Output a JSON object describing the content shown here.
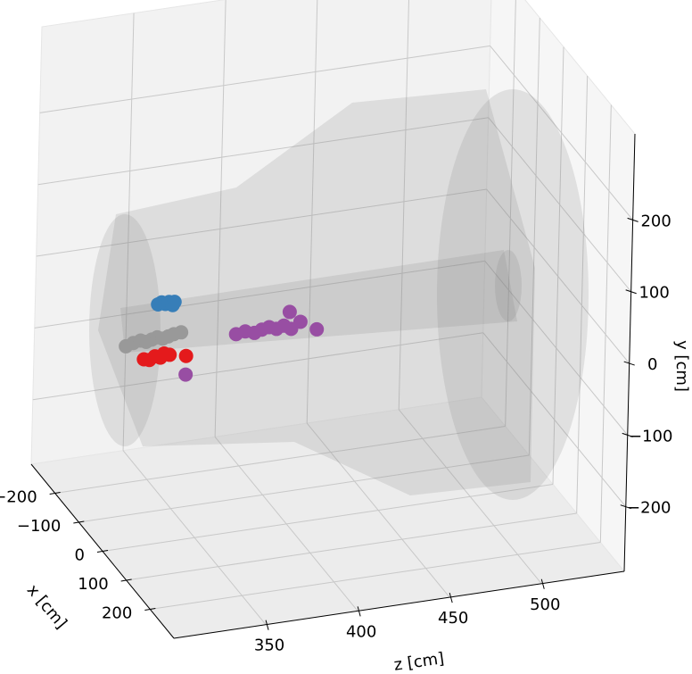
{
  "chart_data": {
    "type": "scatter3d",
    "xlabel": "x [cm]",
    "ylabel": "y [cm]",
    "zlabel": "z [cm]",
    "xlim": [
      -300,
      300
    ],
    "ylim": [
      -290,
      320
    ],
    "zlim": [
      300,
      545
    ],
    "xticks": [
      {
        "value": -200,
        "label": "−200"
      },
      {
        "value": -100,
        "label": "−100"
      },
      0,
      100,
      200
    ],
    "yticks": [
      {
        "value": -200,
        "label": "−200"
      },
      {
        "value": -100,
        "label": "−100"
      },
      0,
      100,
      200
    ],
    "zticks": [
      350,
      400,
      450,
      500
    ],
    "grid": true,
    "series": [
      {
        "color": "#377eb8",
        "x": [
          0,
          0,
          0,
          0,
          0,
          0
        ],
        "y": [
          44,
          46,
          43,
          45,
          40,
          44
        ],
        "z": [
          327,
          329,
          331,
          333,
          335,
          336
        ]
      },
      {
        "color": "#999999",
        "x": [
          0,
          0,
          0,
          0,
          0,
          0,
          0,
          0,
          0,
          0
        ],
        "y": [
          -8,
          -5,
          -3,
          -6,
          -4,
          -2,
          -5,
          -3,
          -1,
          0
        ],
        "z": [
          310,
          314,
          318,
          321,
          324,
          327,
          330,
          333,
          336,
          340
        ]
      },
      {
        "color": "#e41a1c",
        "x": [
          0,
          0,
          0,
          0,
          0,
          0,
          0
        ],
        "y": [
          -30,
          -32,
          -28,
          -31,
          -26,
          -29,
          -34
        ],
        "z": [
          320,
          323,
          326,
          329,
          331,
          334,
          343
        ]
      },
      {
        "color": "#984ea3",
        "x": [
          0,
          0,
          0,
          0,
          0,
          0,
          0,
          0,
          0,
          0,
          0,
          0
        ],
        "y": [
          -14,
          -12,
          -16,
          -13,
          -11,
          -15,
          -12,
          -18,
          6,
          -10,
          -24,
          -60
        ],
        "z": [
          370,
          375,
          380,
          384,
          388,
          392,
          396,
          400,
          399,
          405,
          414,
          343
        ]
      }
    ]
  }
}
